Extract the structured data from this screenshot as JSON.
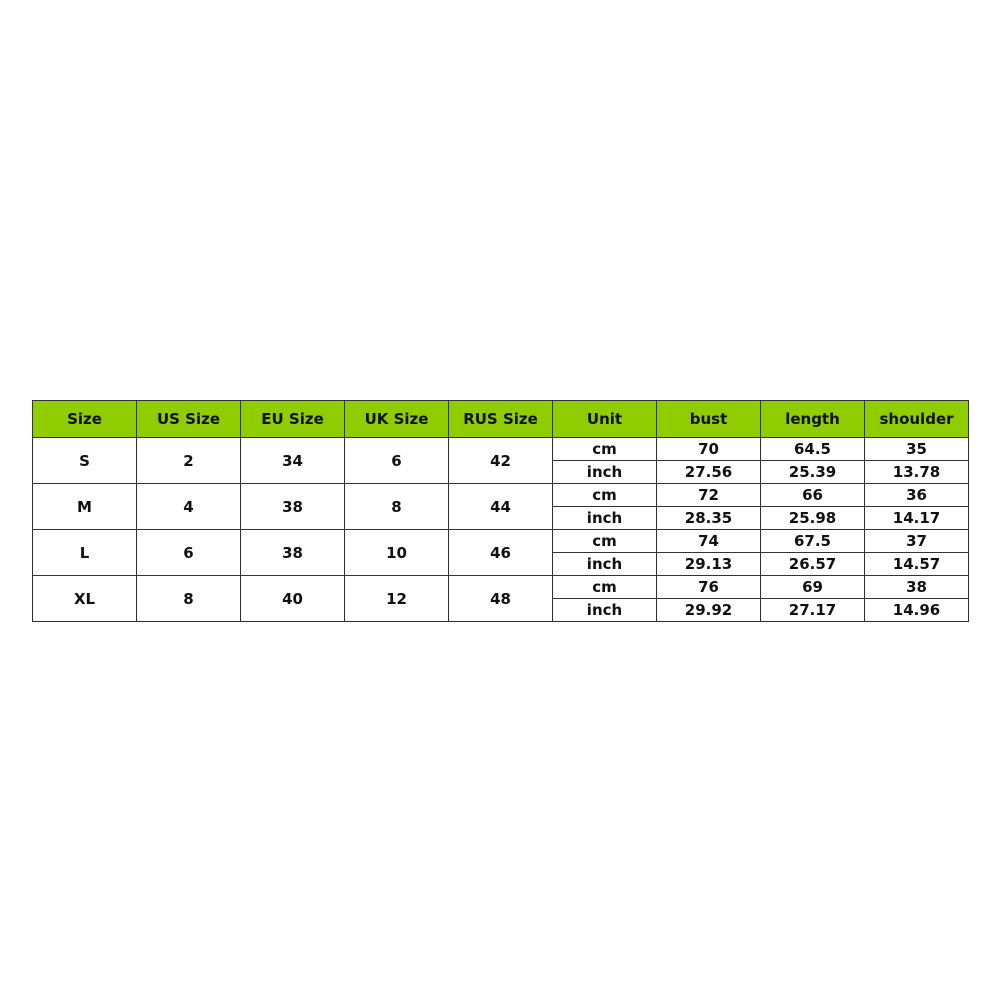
{
  "header_color": "#8fcc00",
  "headers": [
    "Size",
    "US Size",
    "EU Size",
    "UK Size",
    "RUS Size",
    "Unit",
    "bust",
    "length",
    "shoulder"
  ],
  "rows": [
    {
      "size": "S",
      "us": "2",
      "eu": "34",
      "uk": "6",
      "rus": "42",
      "cm": {
        "unit": "cm",
        "bust": "70",
        "length": "64.5",
        "shoulder": "35"
      },
      "inch": {
        "unit": "inch",
        "bust": "27.56",
        "length": "25.39",
        "shoulder": "13.78"
      }
    },
    {
      "size": "M",
      "us": "4",
      "eu": "38",
      "uk": "8",
      "rus": "44",
      "cm": {
        "unit": "cm",
        "bust": "72",
        "length": "66",
        "shoulder": "36"
      },
      "inch": {
        "unit": "inch",
        "bust": "28.35",
        "length": "25.98",
        "shoulder": "14.17"
      }
    },
    {
      "size": "L",
      "us": "6",
      "eu": "38",
      "uk": "10",
      "rus": "46",
      "cm": {
        "unit": "cm",
        "bust": "74",
        "length": "67.5",
        "shoulder": "37"
      },
      "inch": {
        "unit": "inch",
        "bust": "29.13",
        "length": "26.57",
        "shoulder": "14.57"
      }
    },
    {
      "size": "XL",
      "us": "8",
      "eu": "40",
      "uk": "12",
      "rus": "48",
      "cm": {
        "unit": "cm",
        "bust": "76",
        "length": "69",
        "shoulder": "38"
      },
      "inch": {
        "unit": "inch",
        "bust": "29.92",
        "length": "27.17",
        "shoulder": "14.96"
      }
    }
  ]
}
